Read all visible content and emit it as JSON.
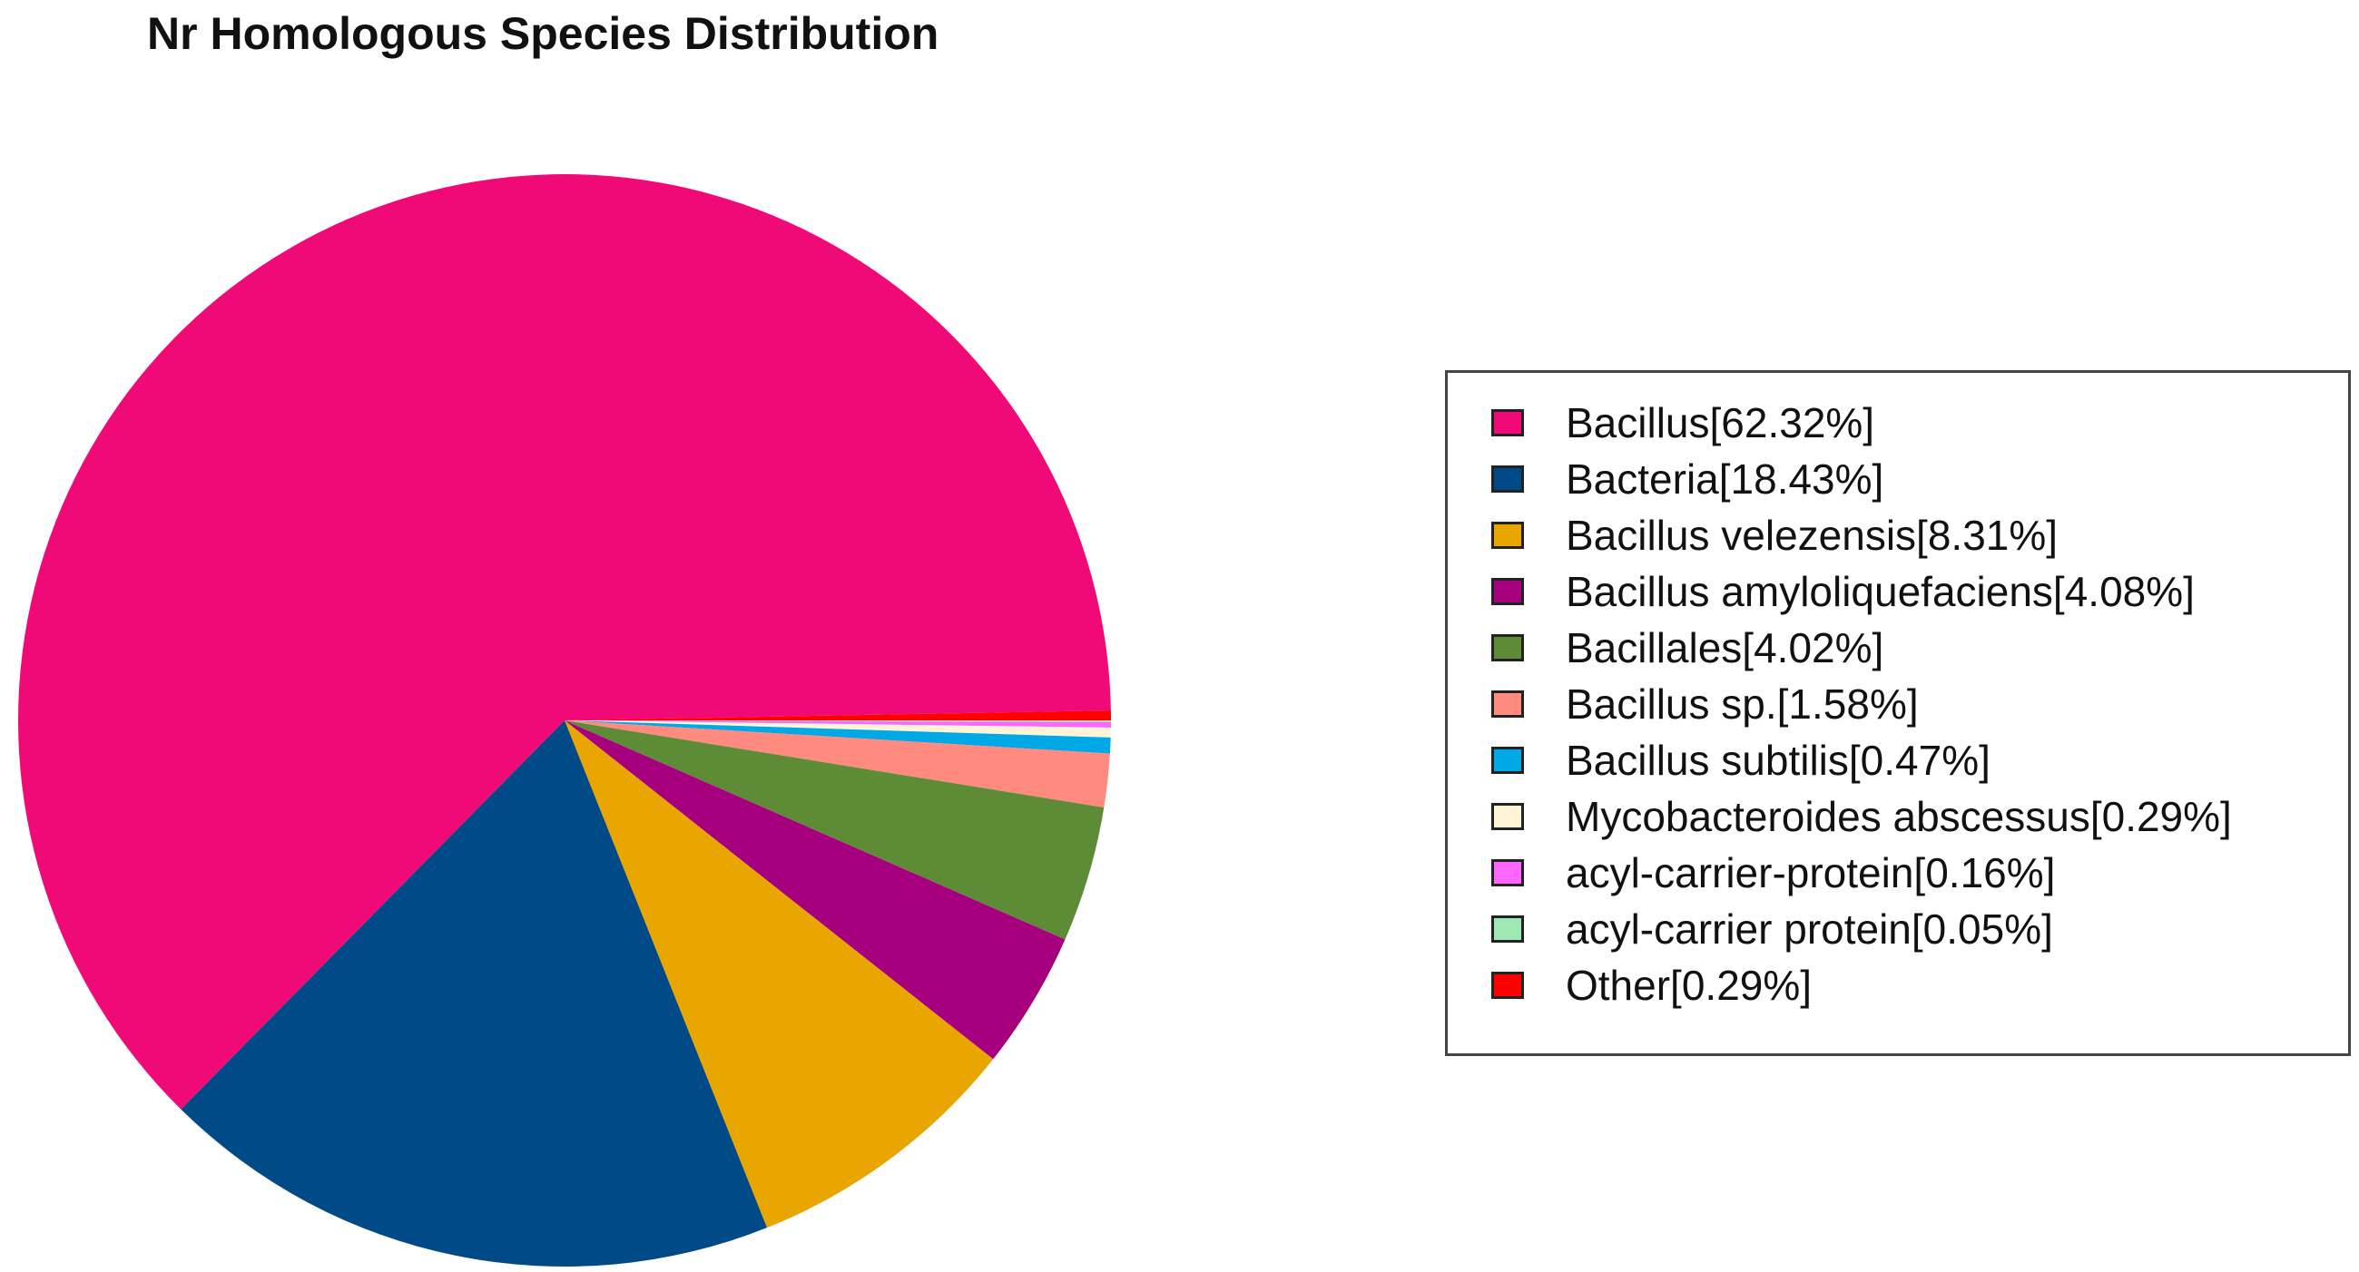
{
  "title": "Nr Homologous Species Distribution",
  "chart_data": {
    "type": "pie",
    "title": "Nr Homologous Species Distribution",
    "slices": [
      {
        "label": "Bacillus[62.32%]",
        "name": "Bacillus",
        "value": 62.32,
        "color": "#F00A78"
      },
      {
        "label": "Bacteria[18.43%]",
        "name": "Bacteria",
        "value": 18.43,
        "color": "#004A87"
      },
      {
        "label": "Bacillus velezensis[8.31%]",
        "name": "Bacillus velezensis",
        "value": 8.31,
        "color": "#E9A500"
      },
      {
        "label": "Bacillus amyloliquefaciens[4.08%]",
        "name": "Bacillus amyloliquefaciens",
        "value": 4.08,
        "color": "#A6007F"
      },
      {
        "label": "Bacillales[4.02%]",
        "name": "Bacillales",
        "value": 4.02,
        "color": "#5E8B35"
      },
      {
        "label": "Bacillus sp.[1.58%]",
        "name": "Bacillus sp.",
        "value": 1.58,
        "color": "#FF8A80"
      },
      {
        "label": "Bacillus subtilis[0.47%]",
        "name": "Bacillus subtilis",
        "value": 0.47,
        "color": "#00A9E6"
      },
      {
        "label": "Mycobacteroides abscessus[0.29%]",
        "name": "Mycobacteroides abscessus",
        "value": 0.29,
        "color": "#FFF5D6"
      },
      {
        "label": "acyl-carrier-protein[0.16%]",
        "name": "acyl-carrier-protein",
        "value": 0.16,
        "color": "#FF66FF"
      },
      {
        "label": "acyl-carrier protein[0.05%]",
        "name": "acyl-carrier protein",
        "value": 0.05,
        "color": "#9EE8B4"
      },
      {
        "label": "Other[0.29%]",
        "name": "Other",
        "value": 0.29,
        "color": "#FF0000"
      }
    ],
    "legend_position": "right"
  }
}
